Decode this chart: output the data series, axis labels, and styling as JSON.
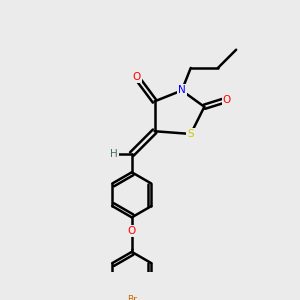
{
  "bg_color": "#ebebeb",
  "bond_color": "#000000",
  "bond_lw": 1.8,
  "atom_colors": {
    "O": "#ff0000",
    "N": "#0000ff",
    "S": "#cccc00",
    "Br": "#cc6600",
    "H": "#407070",
    "C": "#000000"
  },
  "font_size": 7.5,
  "font_size_small": 6.5
}
